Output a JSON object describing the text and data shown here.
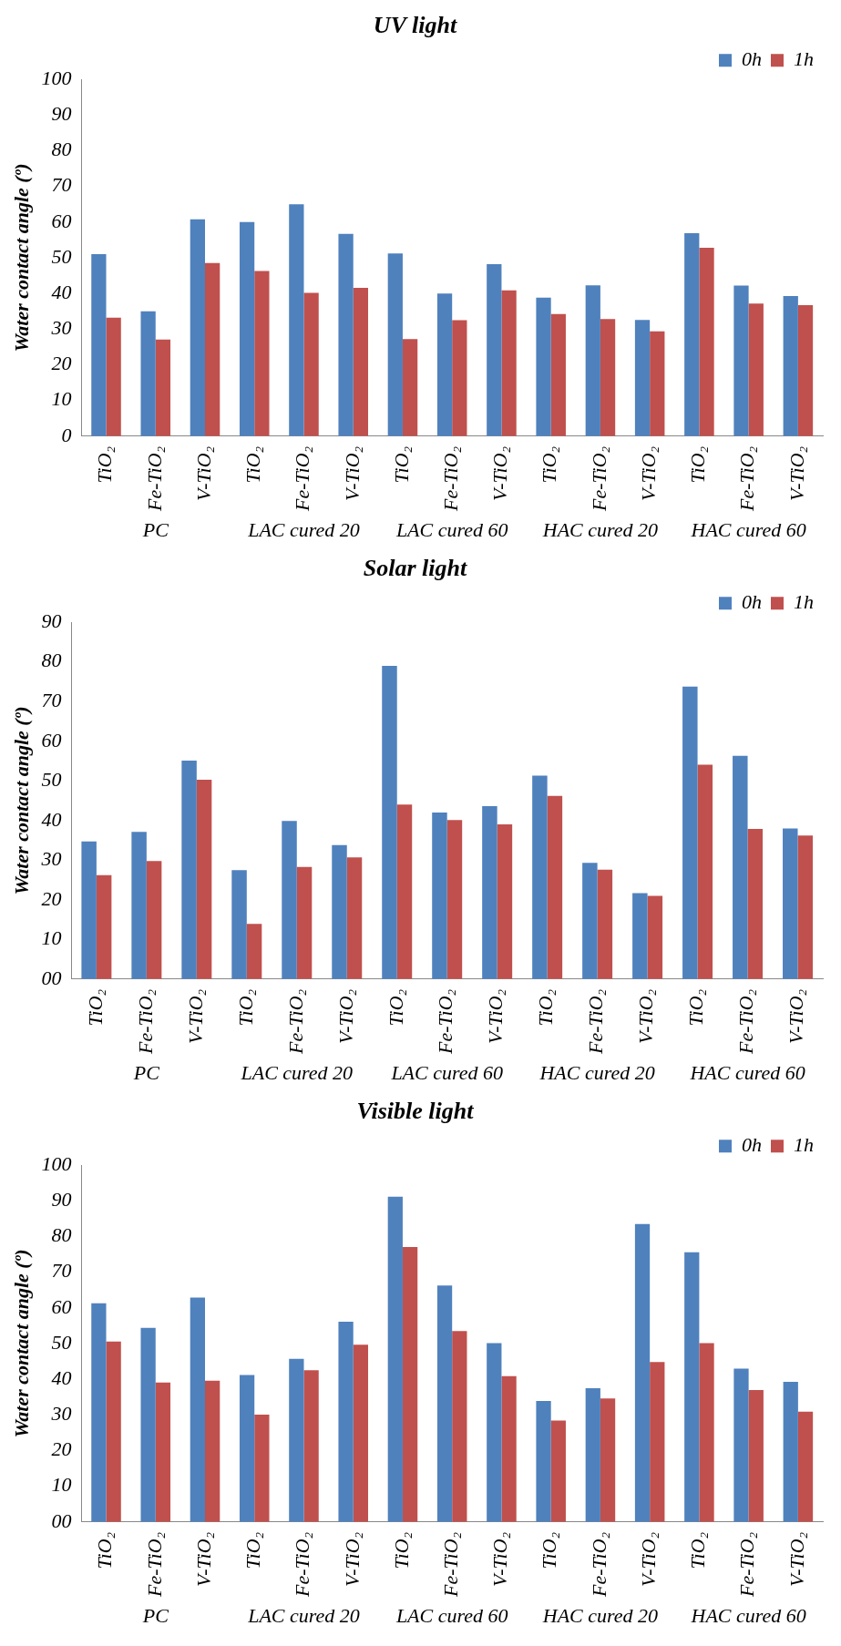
{
  "chart_data": [
    {
      "type": "bar",
      "title": "UV light",
      "ylabel": "Water contact angle (º)",
      "categories": [
        "TiO₂",
        "Fe-TiO₂",
        "V-TiO₂",
        "TiO₂",
        "Fe-TiO₂",
        "V-TiO₂",
        "TiO₂",
        "Fe-TiO₂",
        "V-TiO₂",
        "TiO₂",
        "Fe-TiO₂",
        "V-TiO₂",
        "TiO₂",
        "Fe-TiO₂",
        "V-TiO₂"
      ],
      "annotations": [
        "PC",
        "LAC cured 20",
        "LAC cured 60",
        "HAC cured 20",
        "HAC cured 60"
      ],
      "series": [
        {
          "name": "0h",
          "color": "#4f81bd",
          "values": [
            51,
            35,
            60.8,
            60,
            65,
            56.7,
            51.2,
            40,
            48.2,
            38.8,
            42.3,
            32.6,
            56.9,
            42.2,
            39.3
          ]
        },
        {
          "name": "1h",
          "color": "#c0504d",
          "values": [
            33.2,
            27.1,
            48.5,
            46.3,
            40.2,
            41.6,
            27.2,
            32.5,
            40.9,
            34.2,
            32.8,
            29.4,
            52.8,
            37.2,
            36.7
          ]
        }
      ],
      "ylim": [
        0,
        100
      ],
      "yticks": [
        0,
        10,
        20,
        30,
        40,
        50,
        60,
        70,
        80,
        90,
        100
      ],
      "grid": false,
      "legend": "top right"
    },
    {
      "type": "bar",
      "title": "Solar light",
      "ylabel": "Water contact angle (º)",
      "categories": [
        "TiO₂",
        "Fe-TiO₂",
        "V-TiO₂",
        "TiO₂",
        "Fe-TiO₂",
        "V-TiO₂",
        "TiO₂",
        "Fe-TiO₂",
        "V-TiO₂",
        "TiO₂",
        "Fe-TiO₂",
        "V-TiO₂",
        "TiO₂",
        "Fe-TiO₂",
        "V-TiO₂"
      ],
      "annotations": [
        "PC",
        "LAC cured 20",
        "LAC cured 60",
        "HAC cured 20",
        "HAC cured 60"
      ],
      "series": [
        {
          "name": "0h",
          "color": "#4f81bd",
          "values": [
            34.7,
            37.1,
            55.1,
            27.5,
            39.9,
            33.8,
            79,
            42,
            43.6,
            51.3,
            29.3,
            21.7,
            73.8,
            56.3,
            38
          ]
        },
        {
          "name": "1h",
          "color": "#c0504d",
          "values": [
            26.2,
            29.8,
            50.3,
            13.9,
            28.3,
            30.7,
            44,
            40.1,
            39,
            46.2,
            27.6,
            21,
            54.1,
            37.9,
            36.2
          ]
        }
      ],
      "ylim": [
        0,
        90
      ],
      "yticks": [
        {
          "value": 0,
          "label": "00"
        },
        10,
        20,
        30,
        40,
        50,
        60,
        70,
        80,
        90
      ],
      "grid": false,
      "legend": "top right"
    },
    {
      "type": "bar",
      "title": "Visible light",
      "ylabel": "Water contact angle (º)",
      "categories": [
        "TiO₂",
        "Fe-TiO₂",
        "V-TiO₂",
        "TiO₂",
        "Fe-TiO₂",
        "V-TiO₂",
        "TiO₂",
        "Fe-TiO₂",
        "V-TiO₂",
        "TiO₂",
        "Fe-TiO₂",
        "V-TiO₂",
        "TiO₂",
        "Fe-TiO₂",
        "V-TiO₂"
      ],
      "annotations": [
        "PC",
        "LAC cured 20",
        "LAC cured 60",
        "HAC cured 20",
        "HAC cured 60"
      ],
      "series": [
        {
          "name": "0h",
          "color": "#4f81bd",
          "values": [
            61.3,
            54.4,
            62.9,
            41.2,
            45.7,
            56.1,
            91.2,
            66.3,
            50.1,
            33.9,
            37.5,
            83.5,
            75.6,
            43,
            39.3
          ]
        },
        {
          "name": "1h",
          "color": "#c0504d",
          "values": [
            50.6,
            39.1,
            39.6,
            30.1,
            42.5,
            49.7,
            77.1,
            53.5,
            40.9,
            28.4,
            34.6,
            44.8,
            50.1,
            37,
            30.9
          ]
        }
      ],
      "ylim": [
        0,
        100
      ],
      "yticks": [
        {
          "value": 0,
          "label": "00"
        },
        10,
        20,
        30,
        40,
        50,
        60,
        70,
        80,
        90,
        100
      ],
      "grid": false,
      "legend": "top right"
    }
  ]
}
